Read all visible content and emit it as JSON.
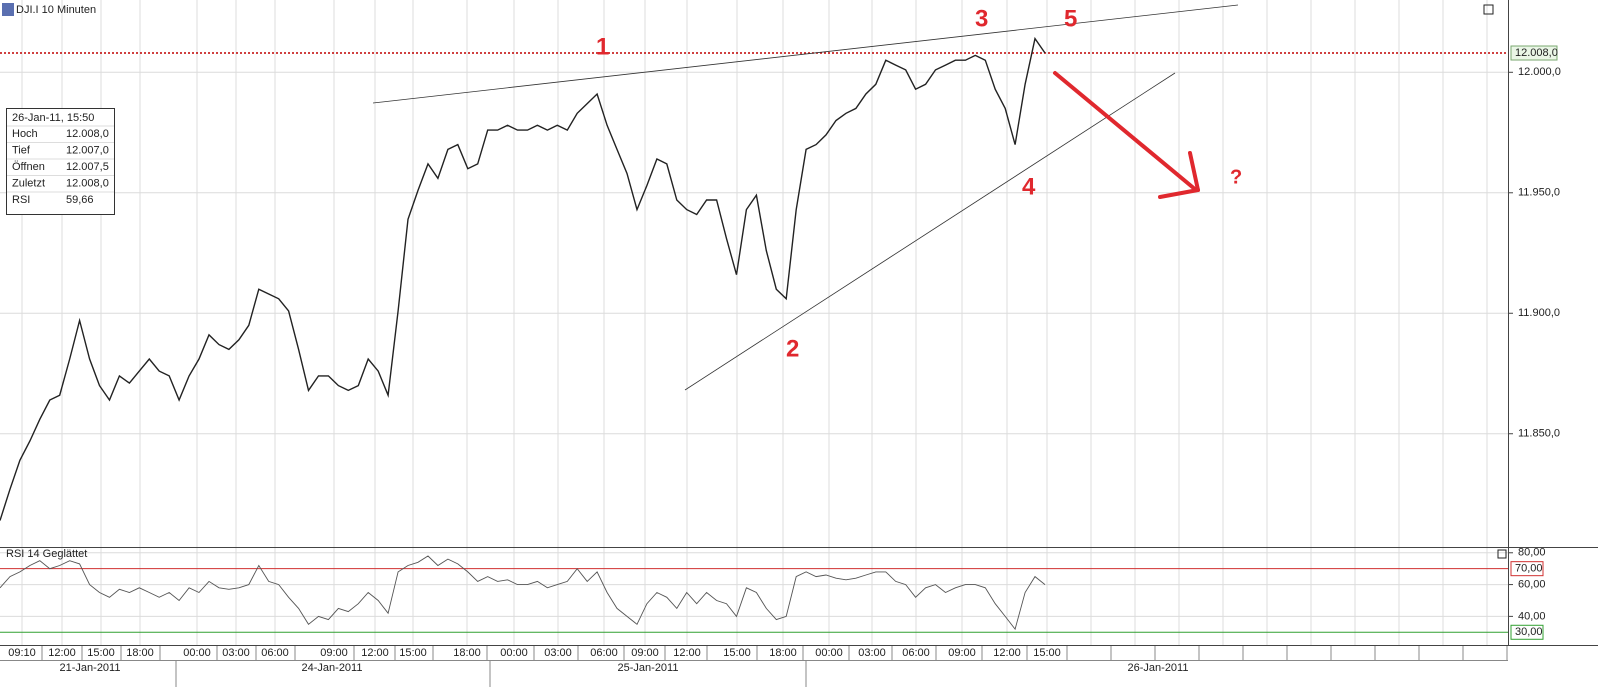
{
  "header": {
    "title": "DJI.I 10 Minuten",
    "rsi_title": "RSI 14 Geglättet"
  },
  "info_box": {
    "time": "26-Jan-11, 15:50",
    "rows": [
      {
        "label": "Hoch",
        "value": "12.008,0"
      },
      {
        "label": "Tief",
        "value": "12.007,0"
      },
      {
        "label": "Öffnen",
        "value": "12.007,5"
      },
      {
        "label": "Zuletzt",
        "value": "12.008,0"
      },
      {
        "label": "RSI",
        "value": "59,66"
      }
    ]
  },
  "annotations": [
    "1",
    "2",
    "3",
    "4",
    "5",
    "?"
  ],
  "time_axis": {
    "times": [
      "09:10",
      "12:00",
      "15:00",
      "18:00",
      "00:00",
      "03:00",
      "06:00",
      "09:00",
      "12:00",
      "15:00",
      "18:00",
      "00:00",
      "03:00",
      "06:00",
      "09:00",
      "12:00",
      "15:00",
      "18:00",
      "00:00",
      "03:00",
      "06:00",
      "09:00",
      "12:00",
      "15:00"
    ],
    "dates": [
      "21-Jan-2011",
      "24-Jan-2011",
      "25-Jan-2011",
      "26-Jan-2011"
    ]
  },
  "chart_data": [
    {
      "type": "line",
      "ylim": [
        11803,
        12030
      ],
      "yticks": [
        {
          "value": 11850,
          "label": "11.850,0"
        },
        {
          "value": 11900,
          "label": "11.900,0"
        },
        {
          "value": 11950,
          "label": "11.950,0"
        },
        {
          "value": 12000,
          "label": "12.000,0"
        }
      ],
      "grid": true,
      "last_price": {
        "value": 12008,
        "label": "12.008,0"
      },
      "series": [
        {
          "name": "DJI.I",
          "color": "#222222",
          "values": [
            11814,
            11827,
            11839,
            11847,
            11856,
            11864,
            11866,
            11881,
            11897,
            11881,
            11870,
            11864,
            11874,
            11871,
            11876,
            11881,
            11876,
            11874,
            11864,
            11874,
            11881,
            11891,
            11887,
            11885,
            11889,
            11895,
            11910,
            11908,
            11906,
            11901,
            11885,
            11868,
            11874,
            11874,
            11870,
            11868,
            11870,
            11881,
            11876,
            11866,
            11901,
            11939,
            11951,
            11962,
            11956,
            11968,
            11970,
            11960,
            11962,
            11976,
            11976,
            11978,
            11976,
            11976,
            11978,
            11976,
            11978,
            11976,
            11983,
            11987,
            11991,
            11978,
            11968,
            11958,
            11943,
            11953,
            11964,
            11962,
            11947,
            11943,
            11941,
            11947,
            11947,
            11931,
            11916,
            11943,
            11949,
            11926,
            11910,
            11906,
            11943,
            11968,
            11970,
            11974,
            11980,
            11983,
            11985,
            11991,
            11995,
            12005,
            12003,
            12001,
            11993,
            11995,
            12001,
            12003,
            12005,
            12005,
            12007,
            12005,
            11993,
            11985,
            11970,
            11995,
            12014,
            12008
          ]
        }
      ]
    },
    {
      "type": "line",
      "ylim": [
        22,
        83
      ],
      "yticks": [
        {
          "value": 40,
          "label": "40,00"
        },
        {
          "value": 60,
          "label": "60,00"
        },
        {
          "value": 80,
          "label": "80,00"
        }
      ],
      "levels": [
        {
          "value": 70,
          "label": "70,00",
          "color": "#d03030"
        },
        {
          "value": 30,
          "label": "30,00",
          "color": "#30a030"
        }
      ],
      "series": [
        {
          "name": "RSI",
          "color": "#555555",
          "values": [
            58,
            65,
            68,
            72,
            75,
            70,
            72,
            75,
            73,
            60,
            55,
            52,
            57,
            55,
            58,
            55,
            52,
            55,
            50,
            58,
            55,
            62,
            58,
            57,
            58,
            60,
            72,
            62,
            60,
            52,
            45,
            35,
            40,
            38,
            45,
            43,
            48,
            55,
            50,
            42,
            68,
            72,
            74,
            78,
            72,
            76,
            73,
            68,
            62,
            65,
            62,
            63,
            60,
            60,
            62,
            58,
            60,
            62,
            70,
            62,
            68,
            55,
            45,
            40,
            35,
            48,
            55,
            52,
            45,
            55,
            48,
            55,
            50,
            48,
            40,
            58,
            55,
            45,
            38,
            40,
            65,
            68,
            65,
            66,
            64,
            63,
            64,
            66,
            68,
            68,
            62,
            60,
            52,
            58,
            60,
            55,
            58,
            60,
            60,
            58,
            48,
            40,
            32,
            55,
            65,
            60
          ]
        }
      ]
    }
  ]
}
